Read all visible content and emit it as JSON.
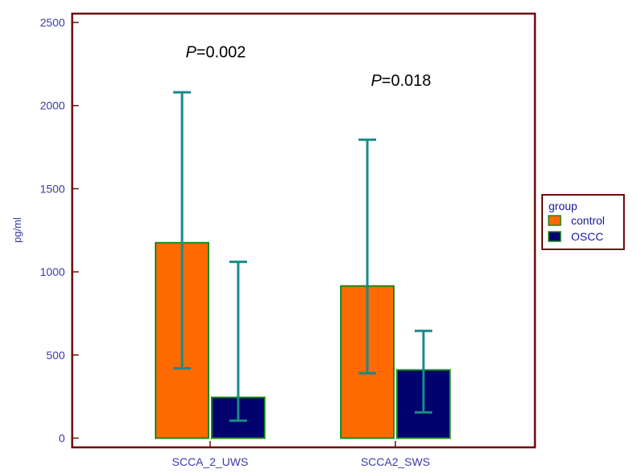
{
  "chart_data": {
    "type": "bar",
    "categories": [
      "SCCA_2_UWS",
      "SCCA2_SWS"
    ],
    "series": [
      {
        "name": "control",
        "color": "#ff6a00",
        "values": [
          1175,
          915
        ],
        "error_low": [
          420,
          390
        ],
        "error_high": [
          2080,
          1795
        ]
      },
      {
        "name": "OSCC",
        "color": "#00006e",
        "values": [
          245,
          410
        ],
        "error_low": [
          105,
          155
        ],
        "error_high": [
          1060,
          645
        ]
      }
    ],
    "ylabel": "pg/ml",
    "xlabel": "",
    "ylim": [
      0,
      2500
    ],
    "yticks": [
      0,
      500,
      1000,
      1500,
      2000,
      2500
    ],
    "annotations": [
      {
        "italic": "P",
        "text": "=0.002",
        "category": "SCCA_2_UWS",
        "y": 2290
      },
      {
        "italic": "P",
        "text": "=0.018",
        "category": "SCCA2_SWS",
        "y": 2120
      }
    ],
    "legend": {
      "title": "group",
      "position": "right"
    },
    "colors": {
      "frame": "#6e0a0a",
      "bar_border": "#1a8a1a",
      "error_bar": "#1a8a88",
      "labels": "#3a3aa8"
    }
  }
}
